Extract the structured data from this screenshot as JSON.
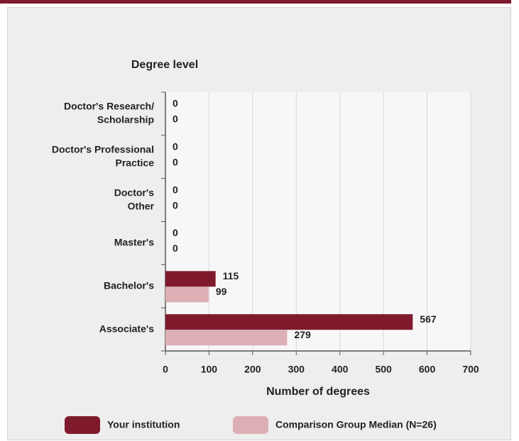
{
  "chart_data": {
    "type": "bar",
    "orientation": "horizontal",
    "y_axis_title": "Degree level",
    "x_axis_title": "Number of degrees",
    "categories": [
      [
        "Doctor's Research/",
        "Scholarship"
      ],
      [
        "Doctor's Professional",
        "Practice"
      ],
      [
        "Doctor's",
        "Other"
      ],
      [
        "Master's"
      ],
      [
        "Bachelor's"
      ],
      [
        "Associate's"
      ]
    ],
    "series": [
      {
        "name": "Your institution",
        "color": "#7f1a2c",
        "values": [
          0,
          0,
          0,
          0,
          115,
          567
        ]
      },
      {
        "name": "Comparison Group Median (N=26)",
        "color": "#dcafb5",
        "values": [
          0,
          0,
          0,
          0,
          99,
          279
        ]
      }
    ],
    "xlim": [
      0,
      700
    ],
    "xticks": [
      0,
      100,
      200,
      300,
      400,
      500,
      600,
      700
    ],
    "grid": true,
    "legend": "bottom"
  }
}
